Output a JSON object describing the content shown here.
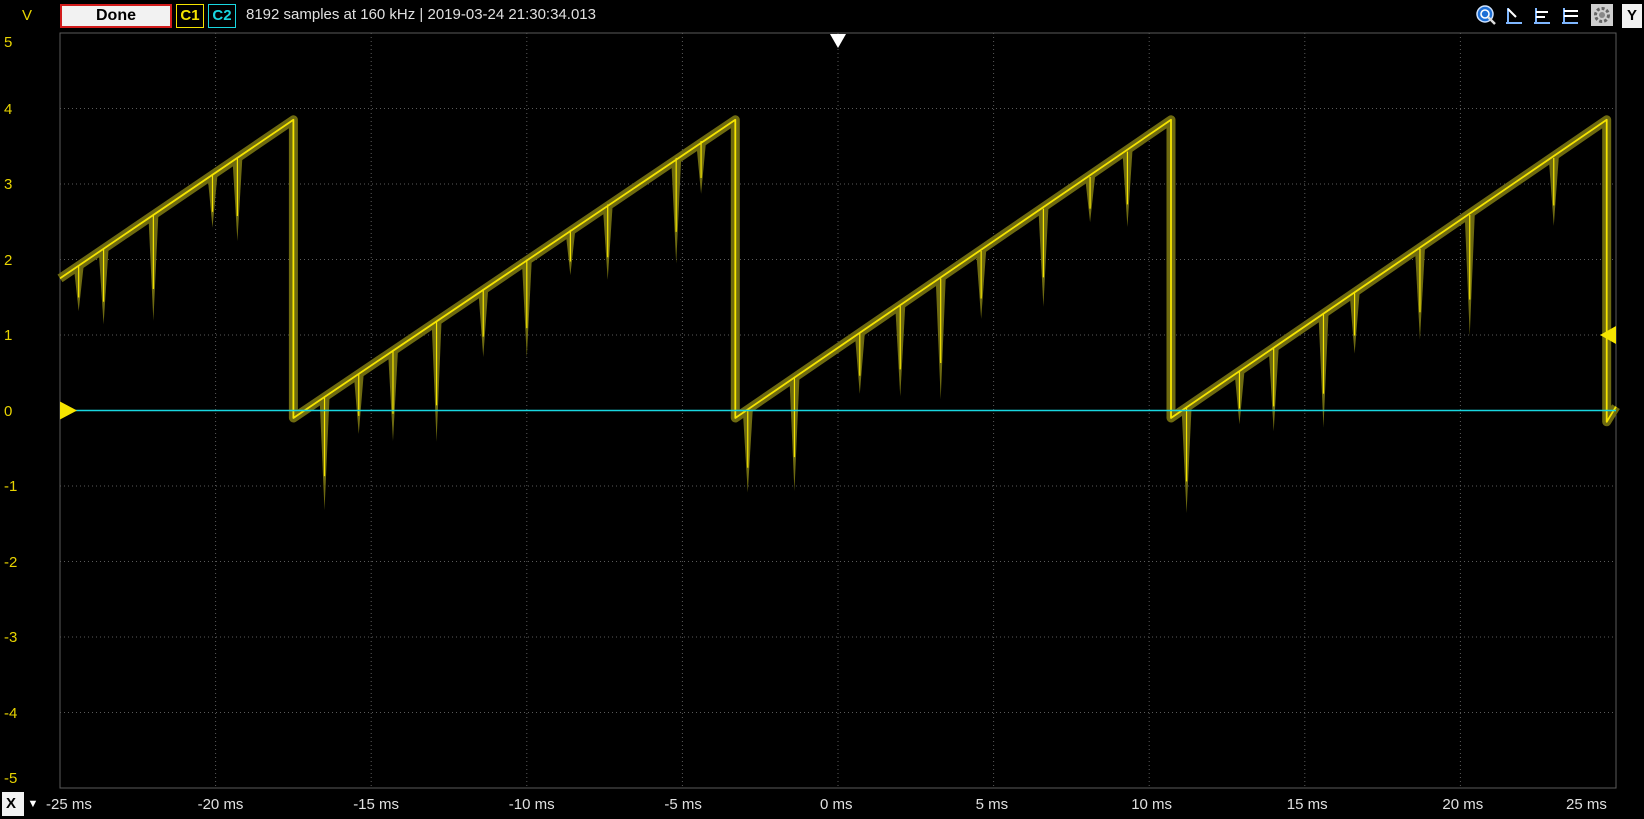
{
  "toolbar": {
    "y_unit": "V",
    "status_label": "Done",
    "channel1_label": "C1",
    "channel2_label": "C2",
    "acquisition_info": "8192 samples at 160 kHz | 2019-03-24 21:30:34.013",
    "y_axis_button": "Y",
    "x_axis_button": "X",
    "icons": [
      "zoom-icon",
      "cursor-left-icon",
      "cursor-align-icon",
      "cursor-right-icon",
      "settings-gear-icon"
    ]
  },
  "colors": {
    "channel1": "#f5e400",
    "channel1_envelope": "#6e6a10",
    "channel2": "#19d6e0",
    "grid": "#5a5a5a",
    "status_border": "#d21c1c"
  },
  "chart_data": {
    "type": "line",
    "xlabel": "",
    "ylabel": "V",
    "xlim": [
      -25,
      25
    ],
    "ylim": [
      -5,
      5
    ],
    "x_tick_labels": [
      "-25 ms",
      "-20 ms",
      "-15 ms",
      "-10 ms",
      "-5 ms",
      "0 ms",
      "5 ms",
      "10 ms",
      "15 ms",
      "20 ms",
      "25 ms"
    ],
    "y_tick_labels": [
      "5",
      "4",
      "3",
      "2",
      "1",
      "0",
      "-1",
      "-2",
      "-3",
      "-4",
      "-5"
    ],
    "grid": true,
    "trigger_time_ms": 0,
    "trigger_level_v": 1.0,
    "series": [
      {
        "name": "C1",
        "x": [
          -25,
          -17.5,
          -17.5,
          -3.3,
          -3.3,
          10.7,
          10.7,
          24.7,
          24.7,
          25
        ],
        "y": [
          1.75,
          3.85,
          -0.1,
          3.85,
          -0.1,
          3.85,
          -0.1,
          3.85,
          -0.15,
          0.05
        ],
        "spikes_ms": [
          -24.4,
          -23.6,
          -22.0,
          -20.1,
          -19.3,
          -16.5,
          -15.4,
          -14.3,
          -12.9,
          -11.4,
          -10.0,
          -8.6,
          -7.4,
          -5.2,
          -4.4,
          -2.9,
          -1.4,
          0.7,
          2.0,
          3.3,
          4.6,
          6.6,
          8.1,
          9.3,
          11.2,
          12.9,
          14.0,
          15.6,
          16.6,
          18.7,
          20.3,
          23.0
        ]
      },
      {
        "name": "C2",
        "x": [
          -25,
          25
        ],
        "y": [
          0,
          0
        ]
      }
    ]
  }
}
